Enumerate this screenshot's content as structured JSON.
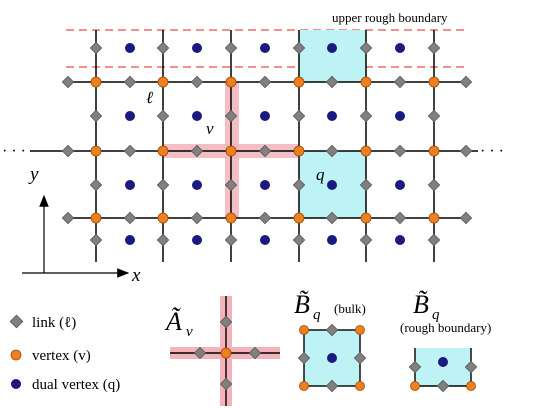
{
  "labels": {
    "upper_boundary": "upper rough boundary",
    "axis_x": "x",
    "axis_y": "y",
    "link_l": "ℓ",
    "vertex_v": "v",
    "plaquette_q": "q",
    "dots": "· · ·"
  },
  "legend": {
    "link": "link (ℓ)",
    "vertex": "vertex (v)",
    "dual": "dual vertex (q)"
  },
  "operators": {
    "A_symbol": "Ã",
    "A_sub": "v",
    "B_symbol": "B̃",
    "B_sub": "q",
    "B_bulk_note": "(bulk)",
    "B_rough_note": "(rough boundary)"
  },
  "colors": {
    "link": "#808080",
    "vertex": "#f07f1e",
    "dual": "#1a1a80",
    "plaquette": "#bdf3f5",
    "star": "#f2b3bb",
    "boundary": "#f26a6a"
  }
}
